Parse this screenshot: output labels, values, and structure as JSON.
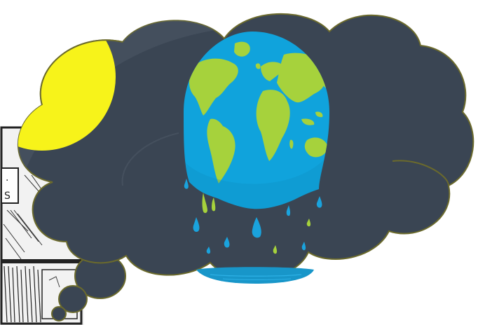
{
  "illustration": {
    "subject": "thought-bubble-melting-earth",
    "elements": [
      "manga-panel-fragment",
      "thought-bubble",
      "yellow-sun",
      "melting-globe",
      "water-drops",
      "water-puddle"
    ]
  },
  "colors": {
    "cloud_fill": "#3a4553",
    "cloud_highlight": "#4c5866",
    "cloud_stroke": "#6b6a2c",
    "sun": "#f7f31a",
    "ocean": "#10a3dc",
    "ocean_dark": "#0b86b8",
    "land": "#a6d23c",
    "drop_blue": "#1aa3dd",
    "drop_green": "#a6d23c",
    "puddle": "#1896c9",
    "panel_bg": "#f2f2f2",
    "panel_ink": "#222222"
  }
}
